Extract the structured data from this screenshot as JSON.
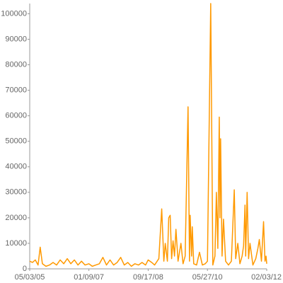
{
  "chart_data": {
    "type": "line",
    "x": [
      "05/03/05",
      "06/01/05",
      "06/30/05",
      "07/29/05",
      "08/20/05",
      "09/12/05",
      "10/19/05",
      "11/25/05",
      "01/01/06",
      "02/07/06",
      "03/16/06",
      "04/22/06",
      "05/29/06",
      "07/05/06",
      "08/11/06",
      "09/17/06",
      "10/24/06",
      "11/30/06",
      "01/09/07",
      "02/13/07",
      "03/22/07",
      "04/28/07",
      "06/04/07",
      "07/11/07",
      "08/17/07",
      "09/23/07",
      "10/30/07",
      "12/06/07",
      "01/12/08",
      "02/18/08",
      "03/26/08",
      "05/02/08",
      "06/08/08",
      "07/15/08",
      "08/21/08",
      "09/17/08",
      "10/24/08",
      "11/23/08",
      "01/06/09",
      "02/05/09",
      "02/27/09",
      "03/14/09",
      "04/05/09",
      "04/19/09",
      "05/04/09",
      "05/19/09",
      "06/03/09",
      "06/18/09",
      "07/03/09",
      "07/25/09",
      "08/24/09",
      "09/15/09",
      "10/07/09",
      "11/06/09",
      "11/21/09",
      "11/28/09",
      "12/13/09",
      "12/20/09",
      "01/04/10",
      "02/03/10",
      "03/05/10",
      "04/04/10",
      "05/04/10",
      "05/27/10",
      "06/30/10",
      "07/22/10",
      "08/13/10",
      "08/28/10",
      "09/12/10",
      "09/27/10",
      "10/04/10",
      "10/11/10",
      "10/26/10",
      "11/10/10",
      "12/02/10",
      "01/01/11",
      "01/31/11",
      "03/02/11",
      "03/17/11",
      "04/08/11",
      "04/30/11",
      "05/23/11",
      "06/07/11",
      "06/22/11",
      "06/29/11",
      "07/14/11",
      "07/29/11",
      "08/13/11",
      "09/12/11",
      "10/12/11",
      "11/03/11",
      "11/18/11",
      "12/10/11",
      "01/01/12",
      "01/16/12",
      "01/27/12",
      "02/03/12"
    ],
    "series": [
      {
        "color": "#ff9900",
        "values": [
          3000,
          2500,
          3500,
          1500,
          8500,
          2000,
          1000,
          1500,
          2500,
          1500,
          3500,
          2000,
          4000,
          2000,
          3500,
          1500,
          3000,
          1500,
          2000,
          1000,
          1500,
          2000,
          4500,
          1500,
          3500,
          1500,
          2500,
          4500,
          1500,
          2500,
          1000,
          2000,
          1500,
          2500,
          1500,
          3500,
          2500,
          1500,
          4000,
          23500,
          3000,
          10000,
          3000,
          20000,
          21000,
          4000,
          11000,
          5000,
          15500,
          3000,
          10000,
          2000,
          5000,
          63500,
          3000,
          21000,
          5000,
          16500,
          2000,
          1500,
          6500,
          1500,
          2000,
          3000,
          104000,
          1500,
          5000,
          30000,
          8000,
          59500,
          20000,
          51000,
          5000,
          19500,
          3000,
          1500,
          3000,
          31000,
          4000,
          10000,
          2000,
          5000,
          9000,
          25000,
          5000,
          30000,
          4000,
          10000,
          1500,
          4000,
          8000,
          11500,
          3000,
          18500,
          3000,
          5000,
          2000
        ]
      }
    ],
    "xlim": [
      "05/03/05",
      "02/03/12"
    ],
    "xticks": [
      "05/03/05",
      "01/09/07",
      "09/17/08",
      "05/27/10",
      "02/03/12"
    ],
    "ylim": [
      0,
      104000
    ],
    "yticks": [
      0,
      10000,
      20000,
      30000,
      40000,
      50000,
      60000,
      70000,
      80000,
      90000,
      100000
    ]
  }
}
